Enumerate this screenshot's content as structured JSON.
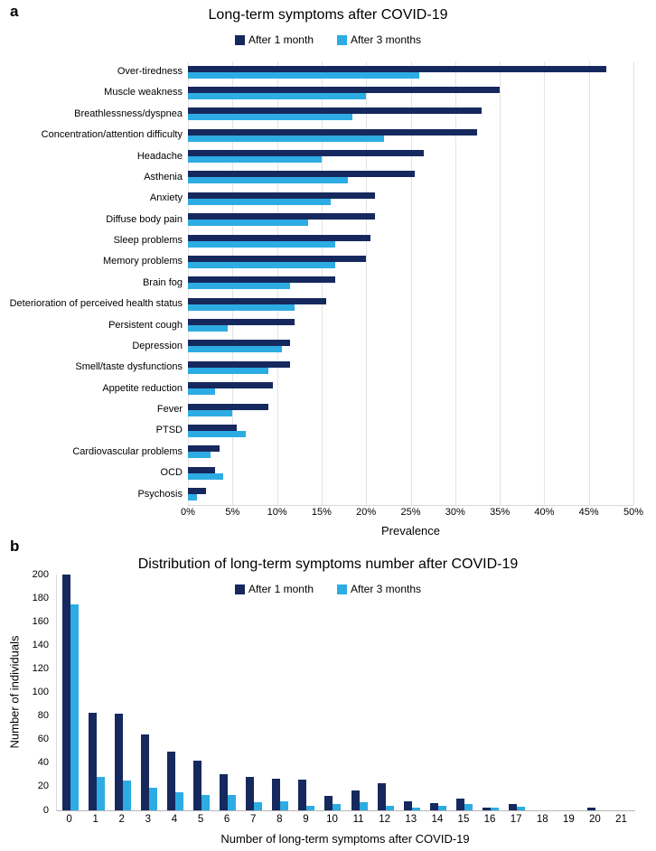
{
  "figure": {
    "panel_a_label": "a",
    "panel_b_label": "b"
  },
  "colors": {
    "after_1_month": "#16295e",
    "after_3_months": "#2dace3",
    "gridline": "#e3e3e3",
    "axis_line": "#b7b7b7",
    "text": "#000000",
    "background": "#ffffff"
  },
  "chart_data": [
    {
      "type": "bar",
      "orientation": "horizontal",
      "title": "Long-term symptoms after COVID-19",
      "xlabel": "Prevalence",
      "xlim": [
        0,
        50
      ],
      "x_ticks": [
        "0%",
        "5%",
        "10%",
        "15%",
        "20%",
        "25%",
        "30%",
        "35%",
        "40%",
        "45%",
        "50%"
      ],
      "grid": "vertical gridlines on",
      "legend_position": "top-center",
      "categories": [
        "Over-tiredness",
        "Muscle weakness",
        "Breathlessness/dyspnea",
        "Concentration/attention difficulty",
        "Headache",
        "Asthenia",
        "Anxiety",
        "Diffuse body pain",
        "Sleep problems",
        "Memory problems",
        "Brain fog",
        "Deterioration of perceived health status",
        "Persistent cough",
        "Depression",
        "Smell/taste dysfunctions",
        "Appetite reduction",
        "Fever",
        "PTSD",
        "Cardiovascular problems",
        "OCD",
        "Psychosis"
      ],
      "series": [
        {
          "name": "After 1 month",
          "color": "#16295e",
          "values": [
            47,
            35,
            33,
            32.5,
            26.5,
            25.5,
            21,
            21,
            20.5,
            20,
            16.5,
            15.5,
            12,
            11.5,
            11.5,
            9.5,
            9,
            5.5,
            3.5,
            3,
            2
          ]
        },
        {
          "name": "After 3 months",
          "color": "#2dace3",
          "values": [
            26,
            20,
            18.5,
            22,
            15,
            18,
            16,
            13.5,
            16.5,
            16.5,
            11.5,
            12,
            4.5,
            10.5,
            9,
            3,
            5,
            6.5,
            2.5,
            4,
            1
          ]
        }
      ]
    },
    {
      "type": "bar",
      "orientation": "vertical",
      "title": "Distribution of long-term symptoms number after COVID-19",
      "xlabel": "Number of long-term symptoms after COVID-19",
      "ylabel": "Number of individuals",
      "ylim": [
        0,
        200
      ],
      "y_ticks": [
        0,
        20,
        40,
        60,
        80,
        100,
        120,
        140,
        160,
        180,
        200
      ],
      "grid": "off",
      "legend_position": "top-center",
      "categories": [
        "0",
        "1",
        "2",
        "3",
        "4",
        "5",
        "6",
        "7",
        "8",
        "9",
        "10",
        "11",
        "12",
        "13",
        "14",
        "15",
        "16",
        "17",
        "18",
        "19",
        "20",
        "21"
      ],
      "series": [
        {
          "name": "After 1 month",
          "color": "#16295e",
          "values": [
            200,
            83,
            82,
            64,
            50,
            42,
            31,
            28,
            27,
            26,
            12,
            17,
            23,
            8,
            6,
            10,
            2,
            5,
            0,
            0,
            2,
            0
          ]
        },
        {
          "name": "After 3 months",
          "color": "#2dace3",
          "values": [
            175,
            28,
            25,
            19,
            15,
            13,
            13,
            7,
            8,
            4,
            5,
            7,
            4,
            2,
            4,
            5,
            2,
            3,
            0,
            0,
            0,
            0
          ]
        }
      ]
    }
  ]
}
